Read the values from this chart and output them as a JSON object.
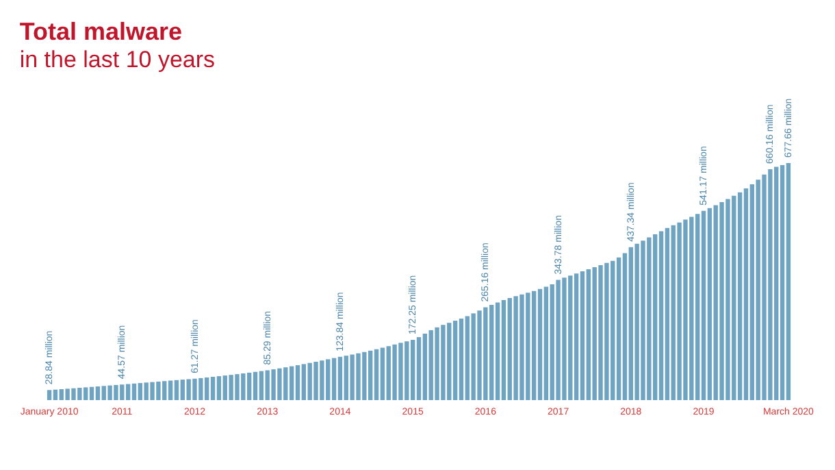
{
  "chart_data": {
    "type": "bar",
    "title": "Total malware",
    "subtitle": "in the last 10 years",
    "categories": [
      "January 2010",
      null,
      null,
      null,
      null,
      null,
      null,
      null,
      null,
      null,
      null,
      null,
      "2011",
      null,
      null,
      null,
      null,
      null,
      null,
      null,
      null,
      null,
      null,
      null,
      "2012",
      null,
      null,
      null,
      null,
      null,
      null,
      null,
      null,
      null,
      null,
      null,
      "2013",
      null,
      null,
      null,
      null,
      null,
      null,
      null,
      null,
      null,
      null,
      null,
      "2014",
      null,
      null,
      null,
      null,
      null,
      null,
      null,
      null,
      null,
      null,
      null,
      "2015",
      null,
      null,
      null,
      null,
      null,
      null,
      null,
      null,
      null,
      null,
      null,
      "2016",
      null,
      null,
      null,
      null,
      null,
      null,
      null,
      null,
      null,
      null,
      null,
      "2017",
      null,
      null,
      null,
      null,
      null,
      null,
      null,
      null,
      null,
      null,
      null,
      "2018",
      null,
      null,
      null,
      null,
      null,
      null,
      null,
      null,
      null,
      null,
      null,
      "2019",
      null,
      null,
      null,
      null,
      null,
      null,
      null,
      null,
      null,
      null,
      null,
      null,
      null,
      "March 2020"
    ],
    "values": [
      28.84,
      30,
      31.3,
      32.6,
      33.9,
      35.2,
      36.5,
      37.8,
      39.1,
      40.5,
      41.9,
      43.2,
      44.57,
      46,
      47.4,
      48.8,
      50.2,
      51.6,
      53,
      54.4,
      55.8,
      57.2,
      58.6,
      59.9,
      61.27,
      63,
      64.8,
      66.6,
      68.4,
      70.3,
      72.2,
      74.2,
      76.3,
      78.5,
      80.7,
      83,
      85.29,
      88,
      90.8,
      93.7,
      96.7,
      99.8,
      103,
      106.3,
      109.7,
      113.2,
      116.8,
      120.3,
      123.84,
      127,
      130.3,
      133.8,
      137.5,
      141.4,
      145.5,
      149.8,
      154.3,
      159,
      163.8,
      168,
      172.25,
      180,
      190,
      200,
      208,
      215,
      221,
      227,
      233,
      240,
      248,
      256,
      265.16,
      272,
      279,
      286,
      292,
      297,
      302,
      307,
      312,
      318,
      324,
      331,
      343.78,
      350,
      356,
      362,
      368,
      374,
      380,
      386,
      392,
      398,
      408,
      420,
      437.34,
      447,
      456,
      465,
      474,
      483,
      492,
      500,
      508,
      516,
      524,
      532,
      541.17,
      549,
      557,
      566,
      575,
      584,
      594,
      605,
      617,
      630,
      645,
      660.16,
      667,
      672,
      677.66
    ],
    "value_labels": [
      "28.84 million",
      null,
      null,
      null,
      null,
      null,
      null,
      null,
      null,
      null,
      null,
      null,
      "44.57 million",
      null,
      null,
      null,
      null,
      null,
      null,
      null,
      null,
      null,
      null,
      null,
      "61.27 million",
      null,
      null,
      null,
      null,
      null,
      null,
      null,
      null,
      null,
      null,
      null,
      "85.29 million",
      null,
      null,
      null,
      null,
      null,
      null,
      null,
      null,
      null,
      null,
      null,
      "123.84 million",
      null,
      null,
      null,
      null,
      null,
      null,
      null,
      null,
      null,
      null,
      null,
      "172.25 million",
      null,
      null,
      null,
      null,
      null,
      null,
      null,
      null,
      null,
      null,
      null,
      "265.16 million",
      null,
      null,
      null,
      null,
      null,
      null,
      null,
      null,
      null,
      null,
      null,
      "343.78 million",
      null,
      null,
      null,
      null,
      null,
      null,
      null,
      null,
      null,
      null,
      null,
      "437.34 million",
      null,
      null,
      null,
      null,
      null,
      null,
      null,
      null,
      null,
      null,
      null,
      "541.17 million",
      null,
      null,
      null,
      null,
      null,
      null,
      null,
      null,
      null,
      null,
      "660.16 million",
      null,
      null,
      "677.66 million"
    ],
    "color": "#6fa3c2",
    "tick_labels": "x"
  }
}
